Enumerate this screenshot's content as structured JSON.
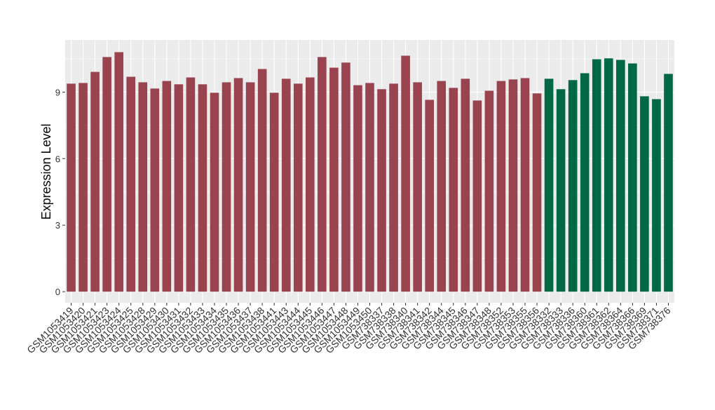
{
  "chart_data": {
    "type": "bar",
    "y_label": "Expression Level",
    "categories": [
      "GSM1053419",
      "GSM1053420",
      "GSM1053421",
      "GSM1053423",
      "GSM1053424",
      "GSM1053425",
      "GSM1053428",
      "GSM1053429",
      "GSM1053430",
      "GSM1053431",
      "GSM1053432",
      "GSM1053433",
      "GSM1053434",
      "GSM1053435",
      "GSM1053436",
      "GSM1053437",
      "GSM1053438",
      "GSM1053441",
      "GSM1053443",
      "GSM1053444",
      "GSM1053445",
      "GSM1053446",
      "GSM1053447",
      "GSM1053448",
      "GSM1053449",
      "GSM1053450",
      "GSM738337",
      "GSM738338",
      "GSM738340",
      "GSM738341",
      "GSM738342",
      "GSM738344",
      "GSM738345",
      "GSM738346",
      "GSM738347",
      "GSM738348",
      "GSM738352",
      "GSM738353",
      "GSM738355",
      "GSM738356",
      "GSM738332",
      "GSM738333",
      "GSM738336",
      "GSM738360",
      "GSM738361",
      "GSM738362",
      "GSM738364",
      "GSM738366",
      "GSM738369",
      "GSM738371",
      "GSM738376"
    ],
    "values": [
      9.38,
      9.41,
      9.91,
      10.58,
      10.8,
      9.69,
      9.44,
      9.16,
      9.5,
      9.35,
      9.66,
      9.35,
      8.97,
      9.44,
      9.63,
      9.44,
      10.04,
      8.97,
      9.6,
      9.38,
      9.66,
      10.58,
      10.1,
      10.33,
      9.31,
      9.41,
      9.13,
      9.38,
      10.64,
      9.44,
      8.65,
      9.5,
      9.19,
      9.6,
      8.62,
      9.06,
      9.5,
      9.57,
      9.63,
      8.94,
      9.6,
      9.13,
      9.54,
      9.85,
      10.48,
      10.52,
      10.45,
      10.29,
      8.81,
      8.68,
      9.82
    ],
    "colors": [
      "#99434f",
      "#99434f",
      "#99434f",
      "#99434f",
      "#99434f",
      "#99434f",
      "#99434f",
      "#99434f",
      "#99434f",
      "#99434f",
      "#99434f",
      "#99434f",
      "#99434f",
      "#99434f",
      "#99434f",
      "#99434f",
      "#99434f",
      "#99434f",
      "#99434f",
      "#99434f",
      "#99434f",
      "#99434f",
      "#99434f",
      "#99434f",
      "#99434f",
      "#99434f",
      "#99434f",
      "#99434f",
      "#99434f",
      "#99434f",
      "#99434f",
      "#99434f",
      "#99434f",
      "#99434f",
      "#99434f",
      "#99434f",
      "#99434f",
      "#99434f",
      "#99434f",
      "#99434f",
      "#006843",
      "#006843",
      "#006843",
      "#006843",
      "#006843",
      "#006843",
      "#006843",
      "#006843",
      "#006843",
      "#006843",
      "#006843"
    ],
    "ylim": [
      -0.5,
      11.35
    ],
    "yticks": [
      0,
      3,
      6,
      9
    ],
    "grid": true
  }
}
